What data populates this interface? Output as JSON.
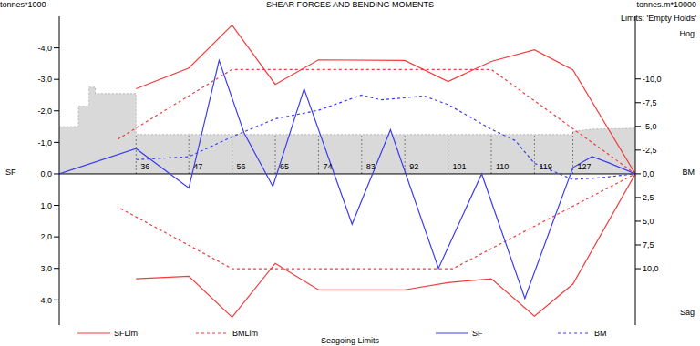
{
  "chart_data": {
    "type": "line",
    "title": "SHEAR FORCES AND BENDING MOMENTS",
    "subtitle": "Limits: 'Empty Holds'",
    "y_label": "SF",
    "y2_label": "BM",
    "y_unit": "tonnes*1000",
    "y2_unit": "tonnes.m*10000",
    "annotations": [
      "Hog",
      "Sag"
    ],
    "legend_title": "Seagoing Limits",
    "legend": "bottom",
    "grid": true,
    "xlim": [
      20,
      140
    ],
    "xticks": [
      36,
      47,
      56,
      65,
      74,
      83,
      92,
      101,
      110,
      119,
      127
    ],
    "ylim": [
      -5,
      4.8
    ],
    "yticks": [
      {
        "value": -4,
        "label": "-4,0"
      },
      {
        "value": -3,
        "label": "-3,0"
      },
      {
        "value": -2,
        "label": "-2,0"
      },
      {
        "value": -1,
        "label": "-1,0"
      },
      {
        "value": 0,
        "label": "0,0"
      },
      {
        "value": 1,
        "label": "1,0"
      },
      {
        "value": 2,
        "label": "2,0"
      },
      {
        "value": 3,
        "label": "3,0"
      },
      {
        "value": 4,
        "label": "4,0"
      }
    ],
    "y2lim": [
      -16.6,
      15.95
    ],
    "y2ticks": [
      {
        "value": -10,
        "label": "-10,0"
      },
      {
        "value": -7.5,
        "label": "-7,5"
      },
      {
        "value": -5,
        "label": "-5,0"
      },
      {
        "value": -2.5,
        "label": "-2,5"
      },
      {
        "value": 0,
        "label": "0,0"
      },
      {
        "value": 2.5,
        "label": "2,5"
      },
      {
        "value": 5,
        "label": "5,0"
      },
      {
        "value": 7.5,
        "label": "7,5"
      },
      {
        "value": 10,
        "label": "10,0"
      }
    ],
    "hull": {
      "color": "#d9d9d9",
      "x": [
        20,
        24,
        24,
        26.2,
        26.2,
        27.5,
        27.5,
        36,
        36,
        127,
        127,
        131,
        140
      ],
      "values": [
        -1.5,
        -1.5,
        -2.15,
        -2.15,
        -2.75,
        -2.75,
        -2.55,
        -2.55,
        -1.25,
        -1.25,
        -1.35,
        -1.42,
        -1.45
      ]
    },
    "series": [
      {
        "name": "SFLim",
        "color": "#f03c3c",
        "line_style": "solid",
        "axis": "y",
        "x": [
          36,
          47,
          56,
          65,
          74,
          92,
          101,
          110,
          119,
          127,
          140,
          127,
          119,
          110,
          101,
          92,
          74,
          65,
          56,
          47,
          36
        ],
        "values": [
          -2.7,
          -3.36,
          -4.72,
          -2.84,
          -3.62,
          -3.6,
          -2.93,
          -3.57,
          -3.94,
          -3.3,
          0,
          3.5,
          4.52,
          3.33,
          3.45,
          3.68,
          3.68,
          2.84,
          4.55,
          3.25,
          3.33
        ]
      },
      {
        "name": "BMLim",
        "color": "#f03c3c",
        "line_style": "dashed",
        "axis": "y2",
        "x": [
          32.2,
          56,
          110,
          140,
          102,
          56,
          32.2
        ],
        "values": [
          -3.65,
          -11.0,
          -11.0,
          0,
          10.0,
          10.0,
          3.5
        ]
      },
      {
        "name": "SF",
        "color": "#3c3cf0",
        "line_style": "solid",
        "axis": "y",
        "x": [
          20,
          36,
          47,
          53.3,
          58.5,
          64.5,
          71,
          81,
          89,
          99,
          108,
          117,
          127,
          131,
          134.5,
          140
        ],
        "values": [
          0,
          -0.8,
          0.45,
          -3.6,
          -1.3,
          0.4,
          -2.7,
          1.6,
          -1.4,
          3.0,
          0,
          3.95,
          -0.2,
          -0.55,
          -0.35,
          0
        ]
      },
      {
        "name": "BM",
        "color": "#3c3cf0",
        "line_style": "dashed",
        "axis": "y2",
        "x": [
          36,
          47,
          56,
          65,
          74,
          83,
          87,
          96,
          101,
          110,
          115,
          119,
          127,
          133,
          140
        ],
        "values": [
          -1.5,
          -1.8,
          -3.9,
          -5.8,
          -6.7,
          -8.3,
          -7.8,
          -8.2,
          -7.3,
          -4.7,
          -3.5,
          -1.1,
          0.6,
          0.4,
          0
        ]
      }
    ]
  }
}
